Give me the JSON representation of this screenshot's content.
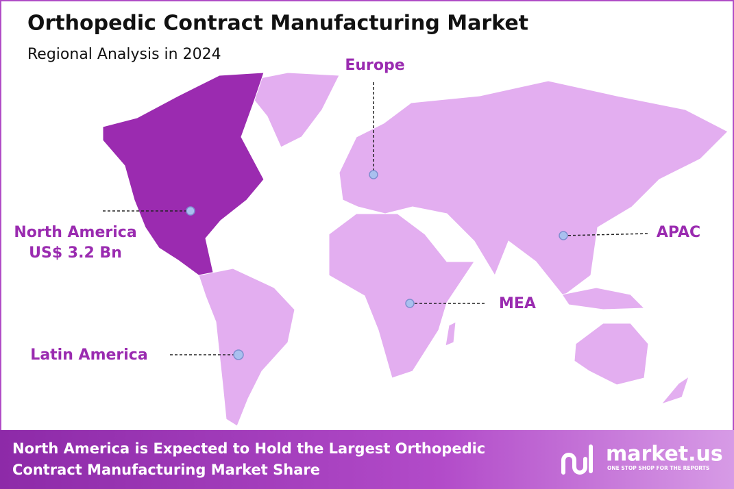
{
  "header": {
    "title": "Orthopedic Contract Manufacturing Market",
    "subtitle": "Regional Analysis in 2024"
  },
  "regions": [
    {
      "label": "North America",
      "value": "US$ 3.2 Bn"
    },
    {
      "label": "Europe"
    },
    {
      "label": "APAC"
    },
    {
      "label": "MEA"
    },
    {
      "label": "Latin America"
    }
  ],
  "footer": {
    "text": "North America is Expected to Hold the Largest Orthopedic Contract Manufacturing Market Share",
    "logo": "market.us",
    "tagline": "ONE STOP SHOP FOR THE REPORTS"
  }
}
